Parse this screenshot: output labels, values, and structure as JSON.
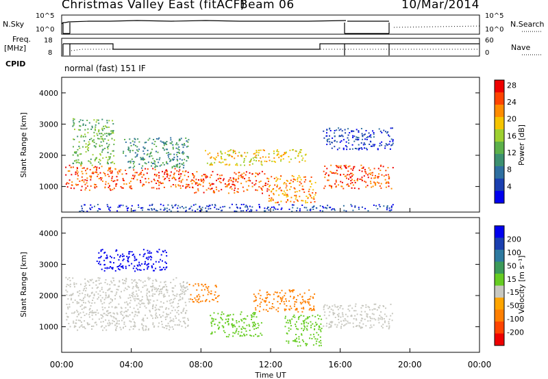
{
  "header": {
    "station": "Christmas Valley East (fitACF)",
    "beam": "Beam 06",
    "date": "10/Mar/2014"
  },
  "noise_panel": {
    "left_label": "N.Sky",
    "left_ticks": [
      "10^5",
      "10^0"
    ],
    "right_ticks": [
      "10^5",
      "10^0"
    ],
    "right_label": "N.Search"
  },
  "freq_panel": {
    "left_label_1": "Freq.",
    "left_label_2": "[MHz]",
    "left_ticks": [
      "18",
      "8"
    ],
    "right_ticks": [
      "60",
      "0"
    ],
    "right_label": "Nave"
  },
  "cpid": {
    "label": "CPID",
    "mode": "normal (fast) 151 IF"
  },
  "colors": {
    "power": [
      "#0000ee",
      "#1a3fb0",
      "#2e6fa0",
      "#3c9070",
      "#5cb04a",
      "#9ed030",
      "#f5c400",
      "#ff8c00",
      "#ff4400",
      "#ee0000"
    ],
    "velocity_pos": [
      "#0000ee",
      "#1a3fb0",
      "#2e7aa0",
      "#3c9a5a",
      "#66cc22"
    ],
    "velocity_neg": [
      "#c8c8c0",
      "#ffa500",
      "#ff7f00",
      "#ff4400",
      "#ee0000"
    ]
  },
  "chart_data": [
    {
      "type": "heatmap",
      "name": "power",
      "ylabel": "Slant Range [km]",
      "colorbar_label": "Power [dB]",
      "colorbar_ticks": [
        "4",
        "8",
        "12",
        "16",
        "20",
        "24",
        "28"
      ],
      "ylim": [
        180,
        4500
      ],
      "yticks": [
        "1000",
        "2000",
        "3000",
        "4000"
      ],
      "xlim": [
        0,
        24
      ],
      "scatter_bands": [
        {
          "t0": 0.2,
          "t1": 3.0,
          "r0": 900,
          "r1": 1700,
          "level": 9
        },
        {
          "t0": 0.6,
          "t1": 3.0,
          "r0": 1700,
          "r1": 3200,
          "level": 5
        },
        {
          "t0": 3.0,
          "t1": 7.3,
          "r0": 950,
          "r1": 1600,
          "level": 9
        },
        {
          "t0": 3.5,
          "t1": 7.3,
          "r0": 1600,
          "r1": 2600,
          "level": 4
        },
        {
          "t0": 7.3,
          "t1": 11.8,
          "r0": 800,
          "r1": 1500,
          "level": 9
        },
        {
          "t0": 8.2,
          "t1": 11.5,
          "r0": 1700,
          "r1": 2200,
          "level": 7
        },
        {
          "t0": 11.8,
          "t1": 14.6,
          "r0": 500,
          "r1": 1400,
          "level": 8
        },
        {
          "t0": 11.0,
          "t1": 14.0,
          "r0": 1800,
          "r1": 2200,
          "level": 7
        },
        {
          "t0": 15.0,
          "t1": 19.0,
          "r0": 950,
          "r1": 1700,
          "level": 9
        },
        {
          "t0": 15.0,
          "t1": 19.0,
          "r0": 2200,
          "r1": 2900,
          "level": 2
        },
        {
          "t0": 1.0,
          "t1": 19.0,
          "r0": 220,
          "r1": 450,
          "level": 2
        }
      ]
    },
    {
      "type": "heatmap",
      "name": "velocity",
      "ylabel": "Slant Range [km]",
      "colorbar_label": "Velocity [m s⁻¹]",
      "colorbar_ticks": [
        "200",
        "100",
        "50",
        "15",
        "-15",
        "-50",
        "-100",
        "-200"
      ],
      "ylim": [
        180,
        4500
      ],
      "yticks": [
        "1000",
        "2000",
        "3000",
        "4000"
      ],
      "xlim": [
        0,
        24
      ],
      "xticks": [
        "00:00",
        "04:00",
        "08:00",
        "12:00",
        "16:00",
        "20:00",
        "00:00"
      ],
      "xlabel": "Time UT",
      "scatter_bands": [
        {
          "t0": 0.2,
          "t1": 7.3,
          "r0": 900,
          "r1": 2600,
          "level": "gs"
        },
        {
          "t0": 2.0,
          "t1": 6.0,
          "r0": 2800,
          "r1": 3500,
          "level": "v200"
        },
        {
          "t0": 7.3,
          "t1": 9.0,
          "r0": 1800,
          "r1": 2400,
          "level": "vm50"
        },
        {
          "t0": 8.5,
          "t1": 11.5,
          "r0": 700,
          "r1": 1500,
          "level": "v50"
        },
        {
          "t0": 11.0,
          "t1": 14.5,
          "r0": 1500,
          "r1": 2200,
          "level": "vm50"
        },
        {
          "t0": 12.8,
          "t1": 14.9,
          "r0": 400,
          "r1": 1400,
          "level": "v50"
        },
        {
          "t0": 15.0,
          "t1": 19.0,
          "r0": 950,
          "r1": 1750,
          "level": "gs"
        }
      ]
    }
  ]
}
